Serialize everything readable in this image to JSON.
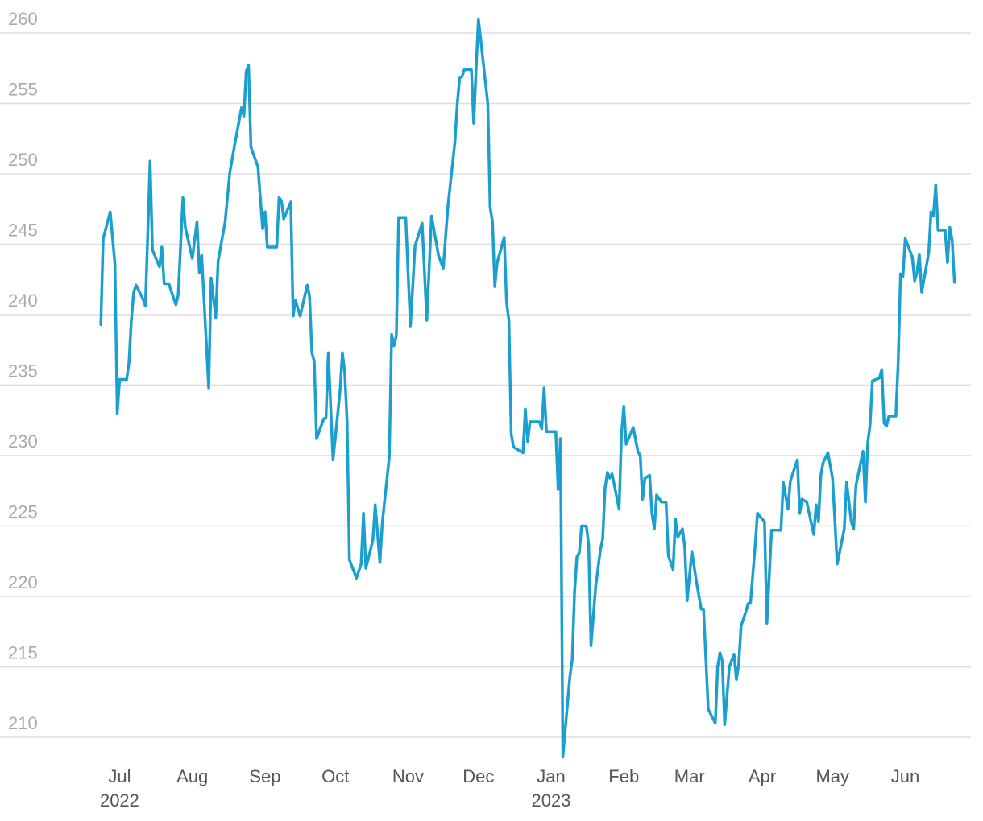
{
  "chart_data": {
    "type": "line",
    "color": "#1a9fce",
    "grid": true,
    "xlim": [
      "2022-05-11",
      "2023-06-29"
    ],
    "xticks": [
      {
        "value": "2022-07-01",
        "label": "Jul",
        "year": "2022"
      },
      {
        "value": "2022-08-01",
        "label": "Aug"
      },
      {
        "value": "2022-09-01",
        "label": "Sep"
      },
      {
        "value": "2022-10-01",
        "label": "Oct"
      },
      {
        "value": "2022-11-01",
        "label": "Nov"
      },
      {
        "value": "2022-12-01",
        "label": "Dec"
      },
      {
        "value": "2023-01-01",
        "label": "Jan",
        "year": "2023"
      },
      {
        "value": "2023-02-01",
        "label": "Feb"
      },
      {
        "value": "2023-03-01",
        "label": "Mar"
      },
      {
        "value": "2023-04-01",
        "label": "Apr"
      },
      {
        "value": "2023-05-01",
        "label": "May"
      },
      {
        "value": "2023-06-01",
        "label": "Jun"
      }
    ],
    "ylim": [
      208,
      262
    ],
    "yticks": [
      210,
      215,
      220,
      225,
      230,
      235,
      240,
      245,
      250,
      255,
      260
    ],
    "x": [
      "2022-06-23",
      "2022-06-24",
      "2022-06-27",
      "2022-06-29",
      "2022-06-30",
      "2022-07-01",
      "2022-07-04",
      "2022-07-05",
      "2022-07-06",
      "2022-07-07",
      "2022-07-08",
      "2022-07-11",
      "2022-07-12",
      "2022-07-14",
      "2022-07-15",
      "2022-07-18",
      "2022-07-19",
      "2022-07-20",
      "2022-07-22",
      "2022-07-25",
      "2022-07-26",
      "2022-07-28",
      "2022-07-29",
      "2022-08-01",
      "2022-08-03",
      "2022-08-04",
      "2022-08-05",
      "2022-08-08",
      "2022-08-09",
      "2022-08-11",
      "2022-08-12",
      "2022-08-15",
      "2022-08-17",
      "2022-08-19",
      "2022-08-22",
      "2022-08-23",
      "2022-08-24",
      "2022-08-25",
      "2022-08-26",
      "2022-08-29",
      "2022-08-31",
      "2022-09-01",
      "2022-09-02",
      "2022-09-06",
      "2022-09-07",
      "2022-09-08",
      "2022-09-09",
      "2022-09-12",
      "2022-09-13",
      "2022-09-14",
      "2022-09-16",
      "2022-09-19",
      "2022-09-20",
      "2022-09-21",
      "2022-09-22",
      "2022-09-23",
      "2022-09-26",
      "2022-09-27",
      "2022-09-28",
      "2022-09-30",
      "2022-10-03",
      "2022-10-04",
      "2022-10-05",
      "2022-10-06",
      "2022-10-07",
      "2022-10-10",
      "2022-10-12",
      "2022-10-13",
      "2022-10-14",
      "2022-10-17",
      "2022-10-18",
      "2022-10-20",
      "2022-10-21",
      "2022-10-24",
      "2022-10-25",
      "2022-10-26",
      "2022-10-27",
      "2022-10-28",
      "2022-10-31",
      "2022-11-02",
      "2022-11-04",
      "2022-11-07",
      "2022-11-09",
      "2022-11-11",
      "2022-11-14",
      "2022-11-16",
      "2022-11-18",
      "2022-11-21",
      "2022-11-22",
      "2022-11-23",
      "2022-11-24",
      "2022-11-25",
      "2022-11-28",
      "2022-11-29",
      "2022-11-30",
      "2022-12-01",
      "2022-12-05",
      "2022-12-06",
      "2022-12-07",
      "2022-12-08",
      "2022-12-09",
      "2022-12-12",
      "2022-12-13",
      "2022-12-14",
      "2022-12-15",
      "2022-12-16",
      "2022-12-19",
      "2022-12-20",
      "2022-12-21",
      "2022-12-22",
      "2022-12-23",
      "2022-12-27",
      "2022-12-28",
      "2022-12-29",
      "2022-12-30",
      "2023-01-03",
      "2023-01-04",
      "2023-01-05",
      "2023-01-06",
      "2023-01-09",
      "2023-01-10",
      "2023-01-11",
      "2023-01-12",
      "2023-01-13",
      "2023-01-14",
      "2023-01-16",
      "2023-01-17",
      "2023-01-18",
      "2023-01-20",
      "2023-01-22",
      "2023-01-23",
      "2023-01-24",
      "2023-01-25",
      "2023-01-26",
      "2023-01-27",
      "2023-01-30",
      "2023-01-31",
      "2023-02-01",
      "2023-02-02",
      "2023-02-04",
      "2023-02-05",
      "2023-02-07",
      "2023-02-08",
      "2023-02-09",
      "2023-02-10",
      "2023-02-12",
      "2023-02-13",
      "2023-02-14",
      "2023-02-15",
      "2023-02-17",
      "2023-02-19",
      "2023-02-20",
      "2023-02-22",
      "2023-02-23",
      "2023-02-24",
      "2023-02-26",
      "2023-02-27",
      "2023-02-28",
      "2023-03-02",
      "2023-03-04",
      "2023-03-06",
      "2023-03-07",
      "2023-03-09",
      "2023-03-12",
      "2023-03-13",
      "2023-03-14",
      "2023-03-15",
      "2023-03-16",
      "2023-03-18",
      "2023-03-20",
      "2023-03-21",
      "2023-03-22",
      "2023-03-23",
      "2023-03-25",
      "2023-03-26",
      "2023-03-27",
      "2023-03-29",
      "2023-03-30",
      "2023-04-02",
      "2023-04-03",
      "2023-04-05",
      "2023-04-09",
      "2023-04-10",
      "2023-04-12",
      "2023-04-13",
      "2023-04-16",
      "2023-04-17",
      "2023-04-18",
      "2023-04-20",
      "2023-04-23",
      "2023-04-24",
      "2023-04-25",
      "2023-04-26",
      "2023-04-27",
      "2023-04-29",
      "2023-05-01",
      "2023-05-03",
      "2023-05-06",
      "2023-05-07",
      "2023-05-09",
      "2023-05-10",
      "2023-05-11",
      "2023-05-14",
      "2023-05-15",
      "2023-05-16",
      "2023-05-17",
      "2023-05-18",
      "2023-05-21",
      "2023-05-22",
      "2023-05-23",
      "2023-05-24",
      "2023-05-25",
      "2023-05-28",
      "2023-05-29",
      "2023-05-30",
      "2023-05-31",
      "2023-06-01",
      "2023-06-04",
      "2023-06-05",
      "2023-06-06",
      "2023-06-07",
      "2023-06-08",
      "2023-06-11",
      "2023-06-12",
      "2023-06-13",
      "2023-06-14",
      "2023-06-15",
      "2023-06-18",
      "2023-06-19",
      "2023-06-20",
      "2023-06-21",
      "2023-06-22"
    ],
    "values": [
      239.3,
      245.4,
      247.3,
      243.6,
      233.0,
      235.4,
      235.4,
      236.6,
      239.6,
      241.6,
      242.1,
      241.1,
      240.6,
      250.9,
      244.6,
      243.4,
      244.8,
      242.2,
      242.2,
      240.7,
      241.4,
      248.3,
      246.2,
      244.0,
      246.6,
      243.0,
      244.2,
      234.8,
      242.6,
      239.8,
      243.8,
      246.6,
      250.1,
      252.0,
      254.7,
      254.1,
      257.3,
      257.7,
      251.9,
      250.5,
      246.1,
      247.3,
      244.8,
      244.8,
      248.3,
      248.1,
      246.8,
      248.0,
      239.9,
      241.0,
      239.9,
      242.1,
      241.3,
      237.3,
      236.7,
      231.2,
      232.6,
      232.7,
      237.3,
      229.7,
      234.6,
      237.3,
      235.9,
      232.4,
      222.6,
      221.3,
      222.3,
      225.9,
      222.0,
      224.0,
      226.5,
      222.4,
      225.2,
      229.9,
      238.6,
      237.8,
      238.5,
      246.9,
      246.9,
      239.2,
      244.9,
      246.5,
      239.6,
      247.0,
      244.2,
      243.3,
      247.7,
      252.3,
      255.0,
      256.8,
      256.9,
      257.4,
      257.4,
      253.6,
      257.4,
      261.0,
      255.0,
      247.6,
      246.6,
      242.0,
      243.7,
      245.5,
      240.9,
      239.6,
      231.5,
      230.6,
      230.3,
      230.2,
      233.3,
      231.0,
      232.4,
      232.4,
      231.9,
      234.8,
      231.7,
      231.7,
      227.6,
      231.2,
      208.6,
      214.3,
      215.5,
      220.3,
      222.8,
      223.1,
      225.0,
      225.0,
      223.7,
      216.5,
      220.7,
      223.3,
      224.1,
      227.7,
      228.8,
      228.4,
      228.7,
      226.2,
      231.5,
      233.5,
      230.8,
      231.6,
      232.0,
      230.3,
      230.0,
      226.9,
      228.4,
      228.6,
      225.9,
      224.8,
      227.2,
      226.7,
      226.7,
      222.9,
      221.9,
      225.5,
      224.2,
      224.8,
      223.5,
      219.7,
      223.2,
      221.0,
      219.1,
      219.1,
      212.0,
      211.0,
      215.0,
      216.0,
      215.4,
      210.9,
      215.0,
      215.9,
      214.1,
      215.2,
      217.9,
      218.9,
      219.5,
      219.5,
      223.6,
      225.9,
      225.3,
      218.1,
      224.7,
      224.7,
      228.1,
      226.2,
      228.2,
      229.7,
      225.9,
      226.9,
      226.7,
      224.4,
      226.5,
      225.3,
      228.6,
      229.5,
      230.2,
      228.4,
      222.3,
      224.8,
      228.1,
      225.3,
      224.8,
      227.9,
      230.3,
      226.7,
      230.9,
      232.2,
      235.3,
      235.5,
      236.1,
      232.3,
      232.1,
      232.8,
      232.8,
      236.7,
      242.9,
      242.7,
      245.4,
      244.1,
      242.4,
      243.0,
      244.3,
      241.6,
      244.4,
      247.3,
      247.0,
      249.2,
      246.0,
      246.0,
      243.7,
      246.2,
      245.3,
      242.3
    ]
  }
}
